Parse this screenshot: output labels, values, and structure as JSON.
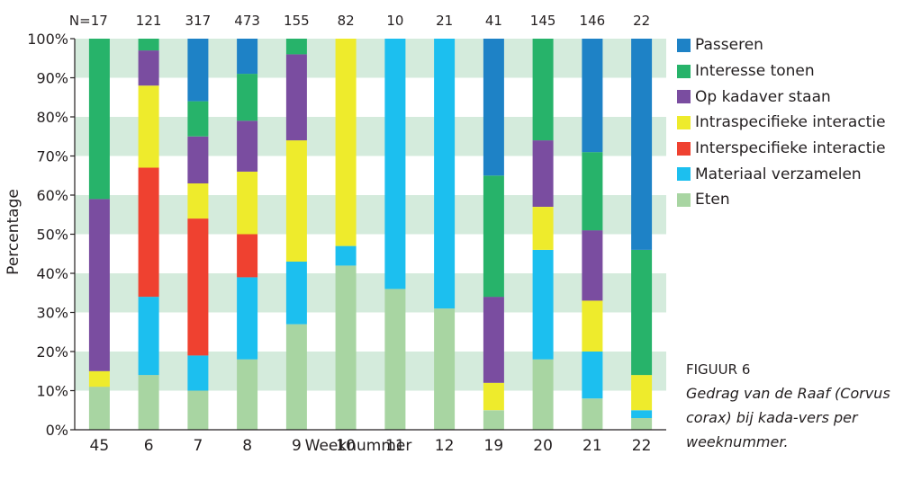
{
  "chart_data": {
    "type": "bar",
    "stacked": true,
    "xlabel": "Weeknummer",
    "ylabel": "Percentage",
    "ylim": [
      0,
      100
    ],
    "yticks": [
      "0%",
      "10%",
      "20%",
      "30%",
      "40%",
      "50%",
      "60%",
      "70%",
      "80%",
      "90%",
      "100%"
    ],
    "grid": "alternating green bands",
    "legend_position": "right",
    "categories": [
      "45",
      "6",
      "7",
      "8",
      "9",
      "10",
      "11",
      "12",
      "19",
      "20",
      "21",
      "22"
    ],
    "counts": [
      "N=17",
      "121",
      "317",
      "473",
      "155",
      "82",
      "10",
      "21",
      "41",
      "145",
      "146",
      "22"
    ],
    "series": [
      {
        "name": "Eten",
        "color": "#a8d5a2",
        "values": [
          11,
          14,
          10,
          18,
          27,
          42,
          36,
          31,
          5,
          18,
          8,
          3
        ]
      },
      {
        "name": "Materiaal verzamelen",
        "color": "#1cbfef",
        "values": [
          0,
          20,
          9,
          21,
          16,
          5,
          64,
          69,
          0,
          28,
          12,
          2
        ]
      },
      {
        "name": "Interspecifieke interactie",
        "color": "#ef4130",
        "values": [
          0,
          33,
          35,
          11,
          0,
          0,
          0,
          0,
          0,
          0,
          0,
          0
        ]
      },
      {
        "name": "Intraspecifieke interactie",
        "color": "#eeeb2c",
        "values": [
          4,
          21,
          9,
          16,
          31,
          53,
          0,
          0,
          7,
          11,
          13,
          9
        ]
      },
      {
        "name": "Op kadaver staan",
        "color": "#7a4da0",
        "values": [
          44,
          9,
          12,
          13,
          22,
          0,
          0,
          0,
          22,
          17,
          18,
          0
        ]
      },
      {
        "name": "Interesse tonen",
        "color": "#27b36a",
        "values": [
          41,
          3,
          9,
          12,
          4,
          0,
          0,
          0,
          31,
          26,
          20,
          32
        ]
      },
      {
        "name": "Passeren",
        "color": "#1e82c6",
        "values": [
          0,
          0,
          16,
          9,
          0,
          0,
          0,
          0,
          35,
          0,
          29,
          54
        ]
      }
    ]
  },
  "legend": [
    {
      "label": "Passeren",
      "color": "#1e82c6"
    },
    {
      "label": "Interesse tonen",
      "color": "#27b36a"
    },
    {
      "label": "Op kadaver staan",
      "color": "#7a4da0"
    },
    {
      "label": "Intraspecifieke interactie",
      "color": "#eeeb2c"
    },
    {
      "label": "Interspecifieke interactie",
      "color": "#ef4130"
    },
    {
      "label": "Materiaal verzamelen",
      "color": "#1cbfef"
    },
    {
      "label": "Eten",
      "color": "#a8d5a2"
    }
  ],
  "caption": {
    "title": "FIGUUR 6",
    "text": "Gedrag van de Raaf (Corvus corax) bij kada-vers per weeknummer."
  },
  "colors": {
    "band": "#d4ebdc",
    "axis": "#231f20"
  }
}
